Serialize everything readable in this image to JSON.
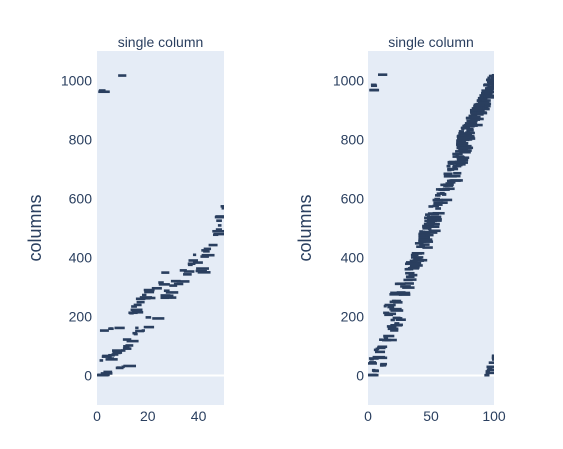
{
  "chart_data": [
    {
      "type": "scatter",
      "title": "single column",
      "xlabel": "",
      "ylabel": "columns",
      "xlim": [
        0,
        50
      ],
      "ylim": [
        -100,
        1100
      ],
      "xticks": [
        0,
        20,
        40
      ],
      "yticks": [
        0,
        200,
        400,
        600,
        800,
        1000
      ],
      "grid": false,
      "legend": "none",
      "marker_color": "#2a3f5f",
      "plot_background": "#e5ecf6",
      "seed": 11,
      "series": [
        {
          "values": [
            {
              "x": [
                0,
                4
              ],
              "y": [
                960,
                985
              ],
              "n": 4
            },
            {
              "x": [
                8,
                9
              ],
              "y": [
                1015,
                1020
              ],
              "n": 1
            },
            {
              "x": [
                0,
                12
              ],
              "y": [
                0,
                40
              ],
              "n": 9
            },
            {
              "x": [
                0,
                8
              ],
              "y": [
                150,
                165
              ],
              "n": 4
            },
            {
              "x": [
                1,
                22
              ],
              "y": [
                40,
                200
              ],
              "n": 24
            },
            {
              "x": [
                10,
                27
              ],
              "y": [
                200,
                350
              ],
              "n": 18
            },
            {
              "x": [
                25,
                42
              ],
              "y": [
                260,
                440
              ],
              "n": 22
            },
            {
              "x": [
                38,
                50
              ],
              "y": [
                340,
                585
              ],
              "n": 18
            }
          ]
        }
      ]
    },
    {
      "type": "scatter",
      "title": "single column",
      "xlabel": "",
      "ylabel": "columns",
      "xlim": [
        0,
        100
      ],
      "ylim": [
        -100,
        1100
      ],
      "xticks": [
        0,
        50,
        100
      ],
      "yticks": [
        0,
        200,
        400,
        600,
        800,
        1000
      ],
      "grid": false,
      "legend": "none",
      "marker_color": "#2a3f5f",
      "plot_background": "#e5ecf6",
      "seed": 29,
      "series": [
        {
          "values": [
            {
              "x": [
                0,
                3
              ],
              "y": [
                960,
                990
              ],
              "n": 4
            },
            {
              "x": [
                7,
                8
              ],
              "y": [
                1015,
                1020
              ],
              "n": 1
            },
            {
              "x": [
                0,
                10
              ],
              "y": [
                0,
                40
              ],
              "n": 8
            },
            {
              "x": [
                0,
                22
              ],
              "y": [
                40,
                200
              ],
              "n": 28
            },
            {
              "x": [
                12,
                45
              ],
              "y": [
                200,
                480
              ],
              "n": 55
            },
            {
              "x": [
                40,
                75
              ],
              "y": [
                450,
                800
              ],
              "n": 120
            },
            {
              "x": [
                70,
                100
              ],
              "y": [
                780,
                1025
              ],
              "n": 170
            },
            {
              "x": [
                91,
                100
              ],
              "y": [
                -5,
                75
              ],
              "n": 12
            }
          ]
        }
      ]
    }
  ]
}
